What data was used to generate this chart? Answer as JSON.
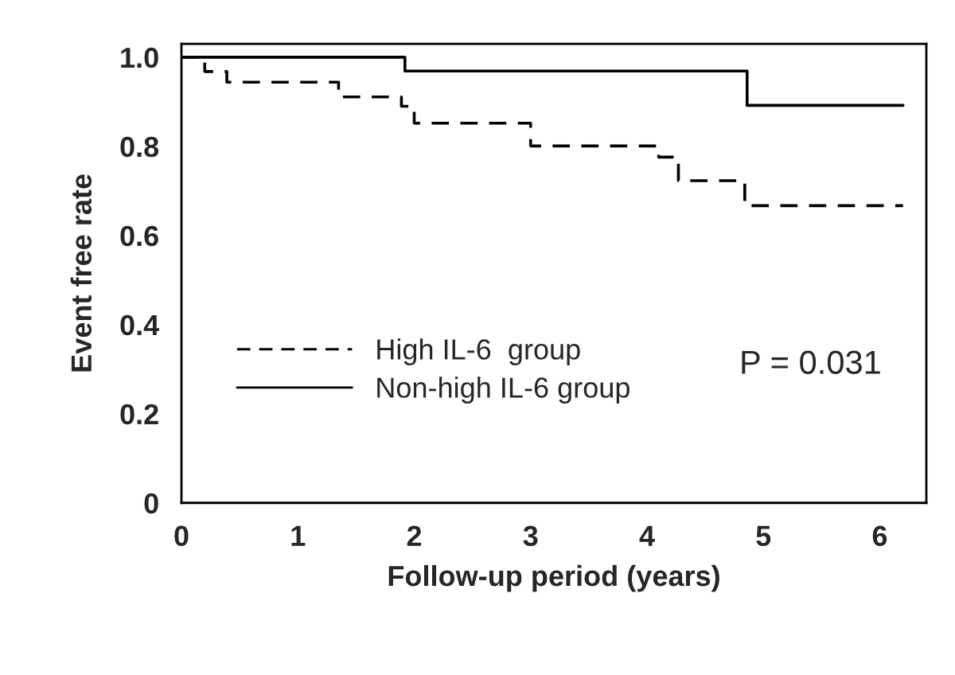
{
  "chart_data": {
    "type": "step",
    "xlabel": "Follow-up period (years)",
    "ylabel": "Event free rate",
    "xlim": [
      0,
      6.4
    ],
    "ylim": [
      0,
      1.03
    ],
    "xticks": [
      0,
      1,
      2,
      3,
      4,
      5,
      6
    ],
    "yticks": [
      0,
      {
        "value": 0.2,
        "label": "0.2"
      },
      {
        "value": 0.4,
        "label": "0.4"
      },
      {
        "value": 0.6,
        "label": "0.6"
      },
      {
        "value": 0.8,
        "label": "0.8"
      },
      {
        "value": 1.0,
        "label": "1.0"
      }
    ],
    "series": [
      {
        "name": "High IL-6  group",
        "color": "#000000",
        "line_style": "dashed",
        "x": [
          0,
          0.2,
          0.39,
          1.35,
          1.89,
          2.0,
          3.0,
          4.1,
          4.27,
          4.84,
          6.2
        ],
        "values": [
          1.0,
          0.968,
          0.944,
          0.911,
          0.89,
          0.852,
          0.801,
          0.776,
          0.723,
          0.667,
          0.667
        ]
      },
      {
        "name": "Non-high IL-6 group",
        "color": "#000000",
        "line_style": "solid",
        "x": [
          0,
          1.92,
          4.86,
          6.2
        ],
        "values": [
          1.0,
          0.969,
          0.892,
          0.892
        ]
      }
    ],
    "legend": "bottom left",
    "grid": false,
    "annotations": [
      "P = 0.031"
    ]
  }
}
